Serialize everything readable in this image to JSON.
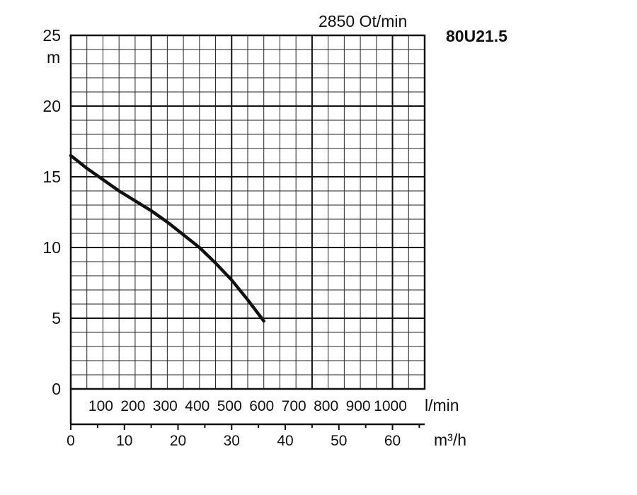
{
  "chart_data": {
    "type": "line",
    "model": "80U21.5",
    "speed_label": "2850 Ot/min",
    "ylabel": "m",
    "ylim": [
      0,
      25
    ],
    "yticks": [
      "0",
      "5",
      "10",
      "15",
      "20",
      "25"
    ],
    "x_lmin_label": "l/min",
    "x_lmin_ticks": [
      "100",
      "200",
      "300",
      "400",
      "500",
      "600",
      "700",
      "800",
      "900",
      "1000"
    ],
    "x_m3h_label": "m³/h",
    "x_m3h_ticks": [
      "0",
      "10",
      "20",
      "30",
      "40",
      "50",
      "60"
    ],
    "xlim_lmin": [
      0,
      1100
    ],
    "grid": true,
    "series": [
      {
        "x_lmin": [
          0,
          50,
          100,
          150,
          200,
          250,
          300,
          350,
          400,
          450,
          500,
          550,
          600
        ],
        "y_m": [
          16.5,
          15.6,
          14.8,
          14.0,
          13.3,
          12.6,
          11.8,
          10.9,
          10.0,
          8.9,
          7.7,
          6.3,
          4.8
        ]
      }
    ]
  }
}
